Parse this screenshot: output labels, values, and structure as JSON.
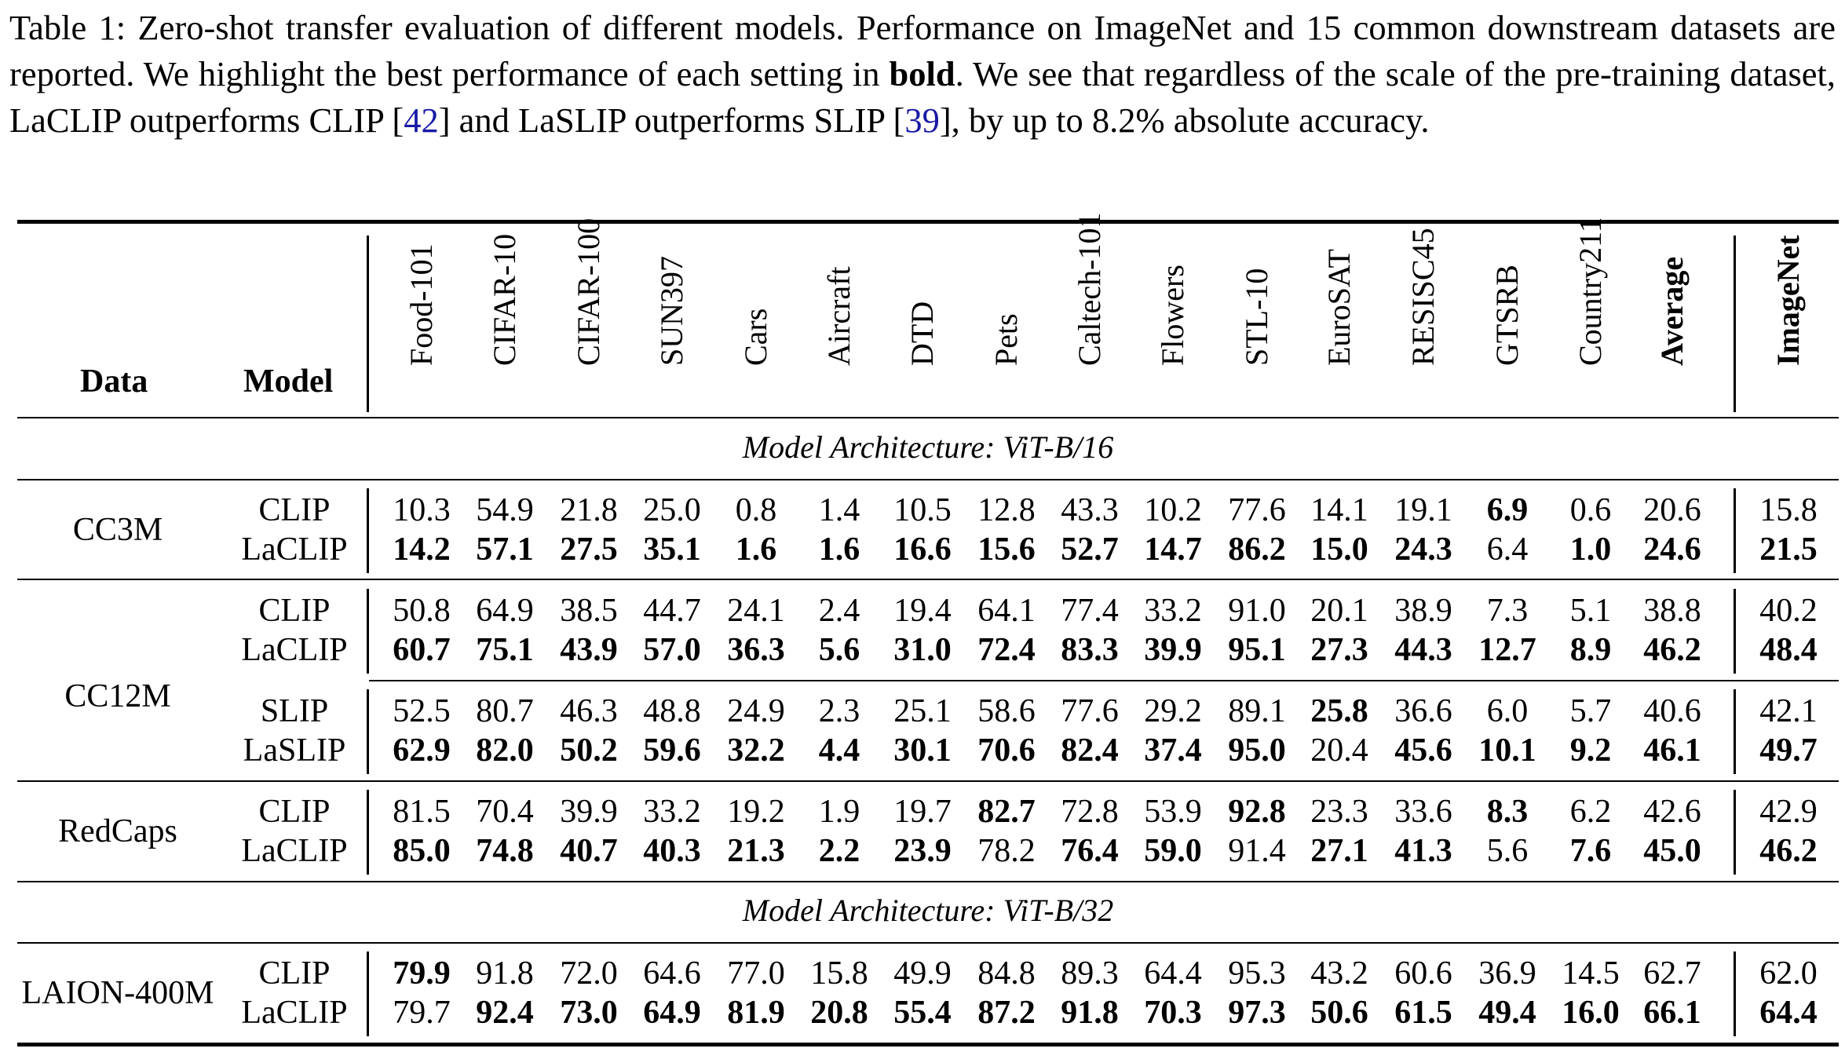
{
  "caption": {
    "p1": "Table 1:  Zero-shot transfer evaluation of different models.  Performance on ImageNet and 15 common downstream datasets are reported.  We highlight the best performance of each setting in ",
    "bold_word": "bold",
    "p2": ".  We see that regardless of the scale of the pre-training dataset, LaCLIP outperforms CLIP [",
    "ref1": "42",
    "p3": "] and LaSLIP outperforms SLIP [",
    "ref2": "39",
    "p4": "], by up to 8.2% absolute accuracy."
  },
  "headers": {
    "data": "Data",
    "model": "Model",
    "columns": [
      "Food-101",
      "CIFAR-10",
      "CIFAR-100",
      "SUN397",
      "Cars",
      "Aircraft",
      "DTD",
      "Pets",
      "Caltech-101",
      "Flowers",
      "STL-10",
      "EuroSAT",
      "RESISC45",
      "GTSRB",
      "Country211",
      "Average",
      "ImageNet"
    ]
  },
  "sections": [
    "Model Architecture: ViT-B/16",
    "Model Architecture: ViT-B/32"
  ],
  "groups": [
    {
      "data": "CC3M",
      "rows": [
        {
          "model": "CLIP",
          "values": [
            "10.3",
            "54.9",
            "21.8",
            "25.0",
            "0.8",
            "1.4",
            "10.5",
            "12.8",
            "43.3",
            "10.2",
            "77.6",
            "14.1",
            "19.1",
            "6.9",
            "0.6",
            "20.6",
            "15.8"
          ],
          "bold": [
            13
          ]
        },
        {
          "model": "LaCLIP",
          "values": [
            "14.2",
            "57.1",
            "27.5",
            "35.1",
            "1.6",
            "1.6",
            "16.6",
            "15.6",
            "52.7",
            "14.7",
            "86.2",
            "15.0",
            "24.3",
            "6.4",
            "1.0",
            "24.6",
            "21.5"
          ],
          "bold": [
            0,
            1,
            2,
            3,
            4,
            5,
            6,
            7,
            8,
            9,
            10,
            11,
            12,
            14,
            15,
            16
          ]
        }
      ]
    },
    {
      "data": "CC12M",
      "rows": [
        {
          "model": "CLIP",
          "values": [
            "50.8",
            "64.9",
            "38.5",
            "44.7",
            "24.1",
            "2.4",
            "19.4",
            "64.1",
            "77.4",
            "33.2",
            "91.0",
            "20.1",
            "38.9",
            "7.3",
            "5.1",
            "38.8",
            "40.2"
          ],
          "bold": []
        },
        {
          "model": "LaCLIP",
          "values": [
            "60.7",
            "75.1",
            "43.9",
            "57.0",
            "36.3",
            "5.6",
            "31.0",
            "72.4",
            "83.3",
            "39.9",
            "95.1",
            "27.3",
            "44.3",
            "12.7",
            "8.9",
            "46.2",
            "48.4"
          ],
          "bold": [
            0,
            1,
            2,
            3,
            4,
            5,
            6,
            7,
            8,
            9,
            10,
            11,
            12,
            13,
            14,
            15,
            16
          ]
        },
        {
          "model": "SLIP",
          "values": [
            "52.5",
            "80.7",
            "46.3",
            "48.8",
            "24.9",
            "2.3",
            "25.1",
            "58.6",
            "77.6",
            "29.2",
            "89.1",
            "25.8",
            "36.6",
            "6.0",
            "5.7",
            "40.6",
            "42.1"
          ],
          "bold": [
            11
          ]
        },
        {
          "model": "LaSLIP",
          "values": [
            "62.9",
            "82.0",
            "50.2",
            "59.6",
            "32.2",
            "4.4",
            "30.1",
            "70.6",
            "82.4",
            "37.4",
            "95.0",
            "20.4",
            "45.6",
            "10.1",
            "9.2",
            "46.1",
            "49.7"
          ],
          "bold": [
            0,
            1,
            2,
            3,
            4,
            5,
            6,
            7,
            8,
            9,
            10,
            12,
            13,
            14,
            15,
            16
          ]
        }
      ]
    },
    {
      "data": "RedCaps",
      "rows": [
        {
          "model": "CLIP",
          "values": [
            "81.5",
            "70.4",
            "39.9",
            "33.2",
            "19.2",
            "1.9",
            "19.7",
            "82.7",
            "72.8",
            "53.9",
            "92.8",
            "23.3",
            "33.6",
            "8.3",
            "6.2",
            "42.6",
            "42.9"
          ],
          "bold": [
            7,
            10,
            13
          ]
        },
        {
          "model": "LaCLIP",
          "values": [
            "85.0",
            "74.8",
            "40.7",
            "40.3",
            "21.3",
            "2.2",
            "23.9",
            "78.2",
            "76.4",
            "59.0",
            "91.4",
            "27.1",
            "41.3",
            "5.6",
            "7.6",
            "45.0",
            "46.2"
          ],
          "bold": [
            0,
            1,
            2,
            3,
            4,
            5,
            6,
            8,
            9,
            11,
            12,
            14,
            15,
            16
          ]
        }
      ]
    },
    {
      "data": "LAION-400M",
      "rows": [
        {
          "model": "CLIP",
          "values": [
            "79.9",
            "91.8",
            "72.0",
            "64.6",
            "77.0",
            "15.8",
            "49.9",
            "84.8",
            "89.3",
            "64.4",
            "95.3",
            "43.2",
            "60.6",
            "36.9",
            "14.5",
            "62.7",
            "62.0"
          ],
          "bold": [
            0
          ]
        },
        {
          "model": "LaCLIP",
          "values": [
            "79.7",
            "92.4",
            "73.0",
            "64.9",
            "81.9",
            "20.8",
            "55.4",
            "87.2",
            "91.8",
            "70.3",
            "97.3",
            "50.6",
            "61.5",
            "49.4",
            "16.0",
            "66.1",
            "64.4"
          ],
          "bold": [
            1,
            2,
            3,
            4,
            5,
            6,
            7,
            8,
            9,
            10,
            11,
            12,
            13,
            14,
            15,
            16
          ]
        }
      ]
    }
  ]
}
